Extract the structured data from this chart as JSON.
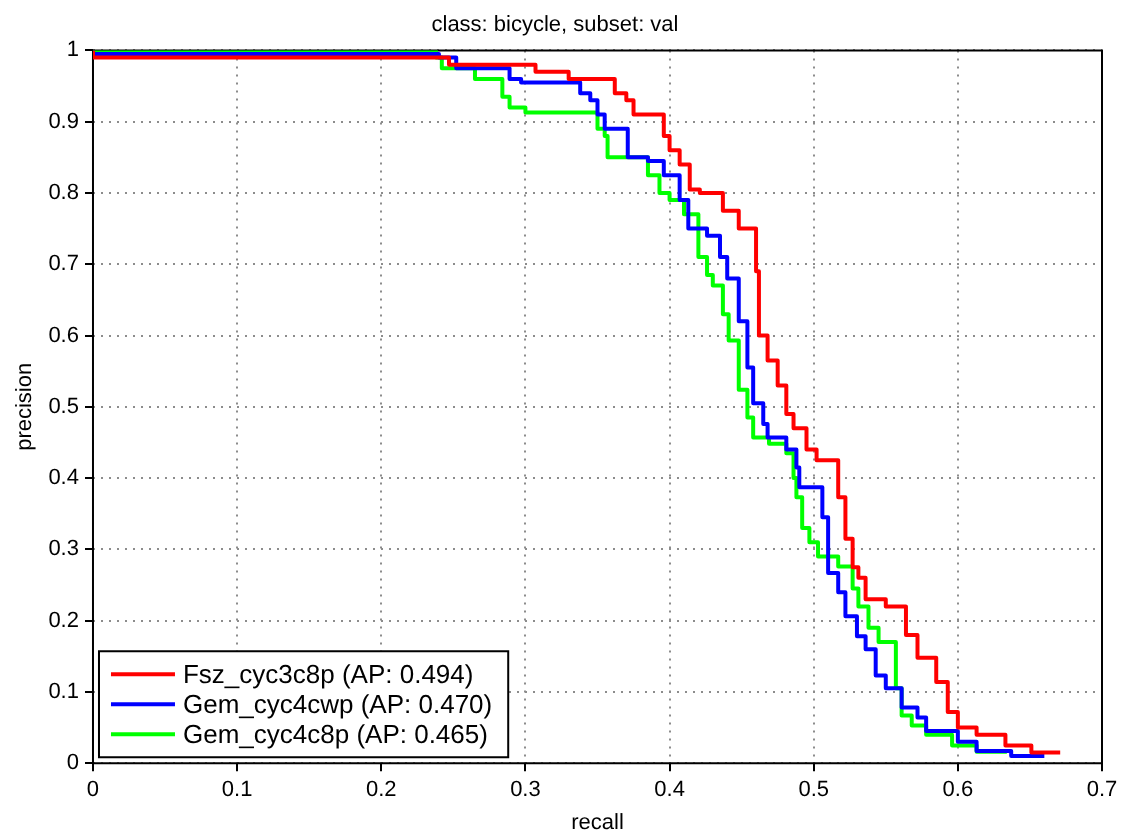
{
  "chart_data": {
    "type": "step",
    "title": "class: bicycle, subset: val",
    "xlabel": "recall",
    "ylabel": "precision",
    "xlim": [
      0,
      0.7
    ],
    "ylim": [
      0,
      1
    ],
    "xticks": [
      0,
      0.1,
      0.2,
      0.3,
      0.4,
      0.5,
      0.6,
      0.7
    ],
    "yticks": [
      0,
      0.1,
      0.2,
      0.3,
      0.4,
      0.5,
      0.6,
      0.7,
      0.8,
      0.9,
      1
    ],
    "grid": true,
    "legend": "bottom left",
    "line_style": "solid",
    "marker": "none",
    "series": [
      {
        "name": "Fsz_cyc3c8p (AP: 0.494)",
        "color": "#ff0000",
        "x": [
          0,
          0.247,
          0.307,
          0.33,
          0.362,
          0.37,
          0.375,
          0.396,
          0.4,
          0.407,
          0.414,
          0.421,
          0.437,
          0.448,
          0.46,
          0.462,
          0.468,
          0.475,
          0.481,
          0.486,
          0.495,
          0.502,
          0.517,
          0.522,
          0.527,
          0.531,
          0.536,
          0.55,
          0.564,
          0.572,
          0.585,
          0.593,
          0.6,
          0.613,
          0.633,
          0.651,
          0.671
        ],
        "values": [
          1,
          0.99,
          0.98,
          0.97,
          0.96,
          0.94,
          0.93,
          0.91,
          0.88,
          0.86,
          0.84,
          0.805,
          0.8,
          0.775,
          0.75,
          0.69,
          0.6,
          0.565,
          0.53,
          0.49,
          0.47,
          0.44,
          0.425,
          0.373,
          0.315,
          0.275,
          0.26,
          0.23,
          0.22,
          0.18,
          0.148,
          0.114,
          0.072,
          0.05,
          0.04,
          0.025,
          0.015
        ]
      },
      {
        "name": "Gem_cyc4cwp (AP: 0.470)",
        "color": "#0000ff",
        "x": [
          0,
          0.24,
          0.252,
          0.289,
          0.297,
          0.338,
          0.345,
          0.35,
          0.355,
          0.371,
          0.385,
          0.396,
          0.407,
          0.413,
          0.426,
          0.435,
          0.44,
          0.448,
          0.454,
          0.458,
          0.465,
          0.468,
          0.481,
          0.488,
          0.49,
          0.506,
          0.51,
          0.517,
          0.522,
          0.53,
          0.536,
          0.543,
          0.55,
          0.561,
          0.572,
          0.578,
          0.6,
          0.613,
          0.637,
          0.66
        ],
        "values": [
          1,
          0.995,
          0.99,
          0.975,
          0.96,
          0.955,
          0.94,
          0.93,
          0.91,
          0.89,
          0.85,
          0.845,
          0.825,
          0.79,
          0.75,
          0.74,
          0.71,
          0.68,
          0.62,
          0.555,
          0.505,
          0.476,
          0.457,
          0.44,
          0.415,
          0.387,
          0.345,
          0.267,
          0.24,
          0.206,
          0.178,
          0.16,
          0.123,
          0.105,
          0.078,
          0.064,
          0.045,
          0.03,
          0.017,
          0.01
        ]
      },
      {
        "name": "Gem_cyc4c8p (AP: 0.465)",
        "color": "#00ff00",
        "x": [
          0,
          0.238,
          0.242,
          0.265,
          0.284,
          0.289,
          0.3,
          0.35,
          0.355,
          0.357,
          0.385,
          0.393,
          0.4,
          0.41,
          0.42,
          0.426,
          0.43,
          0.437,
          0.441,
          0.448,
          0.454,
          0.458,
          0.469,
          0.481,
          0.486,
          0.488,
          0.492,
          0.497,
          0.503,
          0.517,
          0.527,
          0.531,
          0.538,
          0.545,
          0.557,
          0.561,
          0.568,
          0.578,
          0.596,
          0.613,
          0.634
        ],
        "values": [
          1,
          1,
          0.99,
          0.975,
          0.96,
          0.935,
          0.92,
          0.913,
          0.89,
          0.88,
          0.85,
          0.825,
          0.8,
          0.79,
          0.77,
          0.71,
          0.685,
          0.67,
          0.63,
          0.593,
          0.524,
          0.485,
          0.457,
          0.448,
          0.435,
          0.4,
          0.373,
          0.33,
          0.31,
          0.29,
          0.276,
          0.245,
          0.22,
          0.19,
          0.17,
          0.105,
          0.067,
          0.053,
          0.04,
          0.025,
          0.016
        ]
      }
    ]
  }
}
